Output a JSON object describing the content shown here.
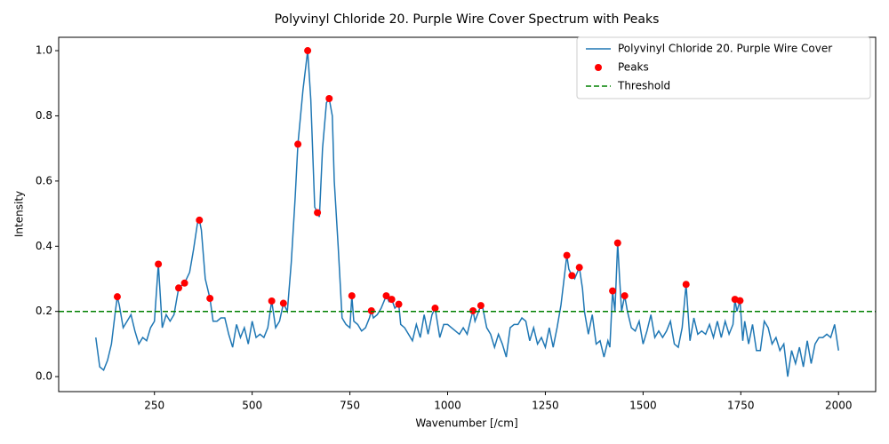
{
  "chart_data": {
    "type": "line",
    "title": "Polyvinyl Chloride 20. Purple Wire Cover Spectrum with Peaks",
    "x_label": "Wavenumber [/cm]",
    "y_label": "Intensity",
    "xlim": [
      5,
      2095
    ],
    "ylim": [
      -0.046,
      1.041
    ],
    "xticks": [
      250,
      500,
      750,
      1000,
      1250,
      1500,
      1750,
      2000
    ],
    "yticks": [
      {
        "value": 0,
        "label": "0.0"
      },
      0.2,
      0.4,
      0.6,
      0.8,
      {
        "value": 1,
        "label": "1.0"
      }
    ],
    "legend": "upper right",
    "series": [
      {
        "name": "Polyvinyl Chloride 20. Purple Wire Cover",
        "color": "#1f77b4",
        "x": [
          100,
          110,
          120,
          130,
          140,
          150,
          155,
          160,
          170,
          180,
          190,
          200,
          210,
          220,
          230,
          240,
          250,
          260,
          270,
          280,
          290,
          300,
          312,
          320,
          327,
          340,
          350,
          360,
          365,
          370,
          380,
          392,
          400,
          410,
          420,
          430,
          440,
          450,
          460,
          470,
          480,
          490,
          500,
          510,
          520,
          530,
          540,
          550,
          560,
          570,
          580,
          590,
          600,
          610,
          617,
          630,
          642,
          650,
          660,
          667,
          672,
          680,
          690,
          697,
          705,
          710,
          720,
          730,
          740,
          750,
          755,
          760,
          770,
          780,
          790,
          800,
          805,
          810,
          820,
          830,
          843,
          850,
          857,
          865,
          875,
          880,
          890,
          900,
          910,
          920,
          930,
          940,
          950,
          960,
          968,
          980,
          990,
          1000,
          1010,
          1020,
          1030,
          1040,
          1050,
          1060,
          1065,
          1070,
          1085,
          1090,
          1100,
          1110,
          1120,
          1130,
          1140,
          1150,
          1160,
          1170,
          1180,
          1190,
          1200,
          1210,
          1220,
          1230,
          1240,
          1250,
          1260,
          1270,
          1280,
          1290,
          1305,
          1310,
          1318,
          1325,
          1337,
          1345,
          1350,
          1360,
          1370,
          1380,
          1390,
          1400,
          1410,
          1415,
          1422,
          1428,
          1435,
          1440,
          1445,
          1453,
          1460,
          1470,
          1480,
          1490,
          1500,
          1510,
          1520,
          1530,
          1540,
          1550,
          1560,
          1570,
          1580,
          1590,
          1600,
          1610,
          1620,
          1630,
          1640,
          1650,
          1660,
          1670,
          1680,
          1690,
          1700,
          1710,
          1720,
          1730,
          1735,
          1740,
          1748,
          1755,
          1760,
          1770,
          1780,
          1790,
          1800,
          1810,
          1820,
          1830,
          1840,
          1850,
          1860,
          1870,
          1880,
          1890,
          1900,
          1910,
          1920,
          1930,
          1940,
          1950,
          1960,
          1970,
          1980,
          1990,
          2000
        ],
        "values": [
          0.12,
          0.03,
          0.02,
          0.05,
          0.1,
          0.2,
          0.245,
          0.22,
          0.15,
          0.17,
          0.19,
          0.14,
          0.1,
          0.12,
          0.11,
          0.15,
          0.17,
          0.345,
          0.15,
          0.19,
          0.17,
          0.19,
          0.272,
          0.28,
          0.287,
          0.32,
          0.39,
          0.47,
          0.48,
          0.45,
          0.3,
          0.24,
          0.17,
          0.17,
          0.18,
          0.18,
          0.13,
          0.09,
          0.16,
          0.12,
          0.15,
          0.1,
          0.17,
          0.12,
          0.13,
          0.12,
          0.15,
          0.232,
          0.15,
          0.17,
          0.225,
          0.2,
          0.35,
          0.55,
          0.713,
          0.88,
          1.0,
          0.85,
          0.52,
          0.503,
          0.49,
          0.7,
          0.84,
          0.853,
          0.8,
          0.6,
          0.4,
          0.18,
          0.16,
          0.15,
          0.248,
          0.17,
          0.16,
          0.14,
          0.15,
          0.18,
          0.202,
          0.18,
          0.19,
          0.21,
          0.248,
          0.23,
          0.237,
          0.21,
          0.222,
          0.16,
          0.15,
          0.13,
          0.11,
          0.16,
          0.12,
          0.19,
          0.13,
          0.19,
          0.21,
          0.12,
          0.16,
          0.16,
          0.15,
          0.14,
          0.13,
          0.15,
          0.13,
          0.18,
          0.202,
          0.17,
          0.218,
          0.21,
          0.15,
          0.13,
          0.09,
          0.13,
          0.1,
          0.06,
          0.15,
          0.16,
          0.16,
          0.18,
          0.17,
          0.11,
          0.15,
          0.1,
          0.12,
          0.09,
          0.15,
          0.09,
          0.15,
          0.22,
          0.372,
          0.33,
          0.31,
          0.3,
          0.335,
          0.27,
          0.2,
          0.13,
          0.19,
          0.1,
          0.11,
          0.06,
          0.11,
          0.09,
          0.263,
          0.2,
          0.41,
          0.3,
          0.2,
          0.248,
          0.2,
          0.15,
          0.14,
          0.17,
          0.1,
          0.14,
          0.19,
          0.12,
          0.14,
          0.12,
          0.14,
          0.17,
          0.1,
          0.09,
          0.15,
          0.283,
          0.11,
          0.18,
          0.13,
          0.14,
          0.13,
          0.16,
          0.12,
          0.17,
          0.12,
          0.17,
          0.13,
          0.16,
          0.237,
          0.2,
          0.233,
          0.11,
          0.17,
          0.1,
          0.16,
          0.08,
          0.08,
          0.17,
          0.15,
          0.1,
          0.12,
          0.08,
          0.1,
          0,
          0.08,
          0.04,
          0.09,
          0.03,
          0.11,
          0.04,
          0.1,
          0.12,
          0.12,
          0.13,
          0.12,
          0.16,
          0.08
        ]
      }
    ],
    "peaks": {
      "name": "Peaks",
      "color": "#ff0000",
      "x": [
        155,
        260,
        312,
        327,
        365,
        392,
        550,
        580,
        617,
        642,
        667,
        697,
        755,
        805,
        843,
        857,
        875,
        968,
        1065,
        1085,
        1305,
        1318,
        1337,
        1422,
        1435,
        1453,
        1610,
        1735,
        1748
      ],
      "values": [
        0.245,
        0.345,
        0.272,
        0.287,
        0.48,
        0.24,
        0.232,
        0.225,
        0.713,
        1.0,
        0.503,
        0.853,
        0.248,
        0.202,
        0.248,
        0.237,
        0.222,
        0.21,
        0.202,
        0.218,
        0.372,
        0.31,
        0.335,
        0.263,
        0.41,
        0.248,
        0.283,
        0.237,
        0.233
      ]
    },
    "threshold": {
      "name": "Threshold",
      "color": "#008000",
      "value": 0.2
    }
  }
}
